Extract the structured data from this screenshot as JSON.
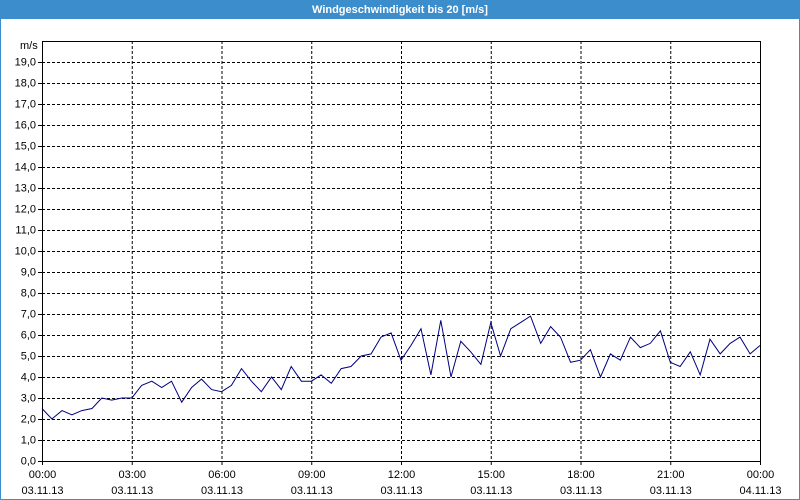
{
  "chart_data": {
    "type": "line",
    "title": "Windgeschwindigkeit bis 20 [m/s]",
    "ylabel": "m/s",
    "x": [
      0,
      0.33,
      0.67,
      1,
      1.33,
      1.67,
      2,
      2.33,
      2.67,
      3,
      3.33,
      3.67,
      4,
      4.33,
      4.67,
      5,
      5.33,
      5.67,
      6,
      6.33,
      6.67,
      7,
      7.33,
      7.67,
      8,
      8.33,
      8.67,
      9,
      9.33,
      9.67,
      10,
      10.33,
      10.67,
      11,
      11.33,
      11.67,
      12,
      12.33,
      12.67,
      13,
      13.33,
      13.67,
      14,
      14.33,
      14.67,
      15,
      15.33,
      15.67,
      16,
      16.33,
      16.67,
      17,
      17.33,
      17.67,
      18,
      18.33,
      18.67,
      19,
      19.33,
      19.67,
      20,
      20.33,
      20.67,
      21,
      21.33,
      21.67,
      22,
      22.33,
      22.67,
      23,
      23.33,
      23.67,
      24
    ],
    "series": [
      {
        "name": "Windgeschwindigkeit",
        "color": "#000080",
        "values": [
          2.5,
          2.0,
          2.4,
          2.2,
          2.4,
          2.5,
          3.0,
          2.9,
          3.0,
          3.0,
          3.6,
          3.8,
          3.5,
          3.8,
          2.8,
          3.5,
          3.9,
          3.4,
          3.3,
          3.6,
          4.4,
          3.8,
          3.3,
          4.0,
          3.4,
          4.5,
          3.8,
          3.8,
          4.1,
          3.7,
          4.4,
          4.5,
          5.0,
          5.1,
          5.9,
          6.1,
          4.8,
          5.5,
          6.3,
          4.1,
          6.7,
          4.0,
          5.7,
          5.2,
          4.6,
          6.6,
          5.0,
          6.3,
          6.6,
          6.9,
          5.6,
          6.4,
          5.9,
          4.7,
          4.8,
          5.3,
          4.0,
          5.1,
          4.8,
          5.9,
          5.4,
          5.6,
          6.2,
          4.7,
          4.5,
          5.2,
          4.1,
          5.8,
          5.1,
          5.6,
          5.9,
          5.1,
          5.5
        ]
      }
    ],
    "xlim": [
      0,
      24
    ],
    "xticks": [
      {
        "value": 0,
        "label": "00:00"
      },
      {
        "value": 3,
        "label": "03:00"
      },
      {
        "value": 6,
        "label": "06:00"
      },
      {
        "value": 9,
        "label": "09:00"
      },
      {
        "value": 12,
        "label": "12:00"
      },
      {
        "value": 15,
        "label": "15:00"
      },
      {
        "value": 18,
        "label": "18:00"
      },
      {
        "value": 21,
        "label": "21:00"
      },
      {
        "value": 24,
        "label": "00:00"
      }
    ],
    "xtick_dates": [
      "03.11.13",
      "03.11.13",
      "03.11.13",
      "03.11.13",
      "03.11.13",
      "03.11.13",
      "03.11.13",
      "03.11.13",
      "04.11.13"
    ],
    "ylim": [
      0,
      20
    ],
    "yticks": [
      {
        "value": 0,
        "label": "0,0"
      },
      {
        "value": 1,
        "label": "1,0"
      },
      {
        "value": 2,
        "label": "2,0"
      },
      {
        "value": 3,
        "label": "3,0"
      },
      {
        "value": 4,
        "label": "4,0"
      },
      {
        "value": 5,
        "label": "5,0"
      },
      {
        "value": 6,
        "label": "6,0"
      },
      {
        "value": 7,
        "label": "7,0"
      },
      {
        "value": 8,
        "label": "8,0"
      },
      {
        "value": 9,
        "label": "9,0"
      },
      {
        "value": 10,
        "label": "10,0"
      },
      {
        "value": 11,
        "label": "11,0"
      },
      {
        "value": 12,
        "label": "12,0"
      },
      {
        "value": 13,
        "label": "13,0"
      },
      {
        "value": 14,
        "label": "14,0"
      },
      {
        "value": 15,
        "label": "15,0"
      },
      {
        "value": 16,
        "label": "16,0"
      },
      {
        "value": 17,
        "label": "17,0"
      },
      {
        "value": 18,
        "label": "18,0"
      },
      {
        "value": 19,
        "label": "19,0"
      }
    ],
    "grid": true
  }
}
